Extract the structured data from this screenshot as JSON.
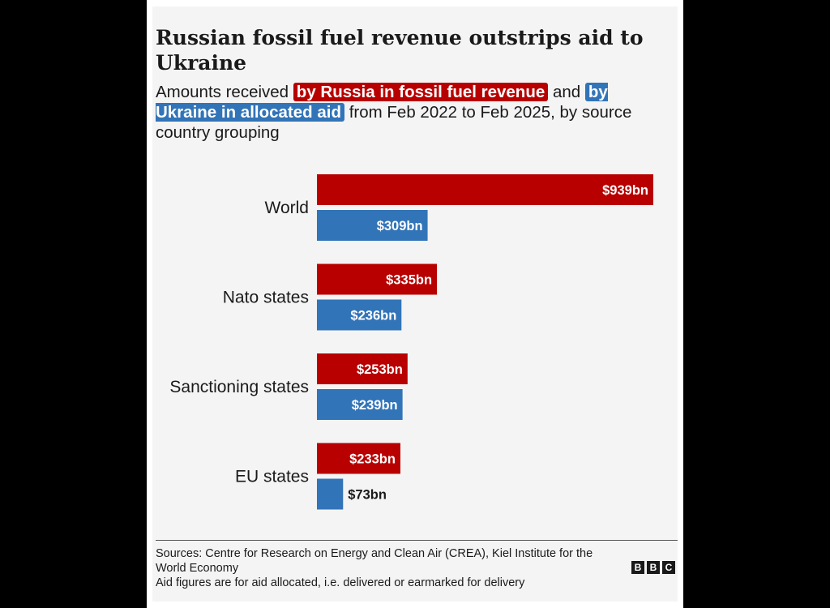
{
  "chart_data": {
    "type": "bar",
    "orientation": "horizontal",
    "title": "Russian fossil fuel revenue outstrips aid to Ukraine",
    "subtitle": {
      "pre": "Amounts received",
      "russia_label": "by Russia in fossil fuel revenue",
      "mid": "and",
      "ukraine_label": "by Ukraine in allocated aid",
      "post": "from Feb 2022 to Feb 2025, by source country grouping"
    },
    "categories": [
      "World",
      "Nato states",
      "Sanctioning states",
      "EU states"
    ],
    "series": [
      {
        "name": "by Russia in fossil fuel revenue",
        "color": "#b80000",
        "values": [
          939,
          335,
          253,
          233
        ],
        "labels": [
          "$939bn",
          "$335bn",
          "$253bn",
          "$233bn"
        ]
      },
      {
        "name": "by Ukraine in allocated aid",
        "color": "#3274b8",
        "values": [
          309,
          236,
          239,
          73
        ],
        "labels": [
          "$309bn",
          "$236bn",
          "$239bn",
          "$73bn"
        ]
      }
    ],
    "unit": "$bn",
    "xlim": [
      0,
      939
    ]
  },
  "footer": {
    "sources": "Sources: Centre for Research on Energy and Clean Air (CREA), Kiel Institute for the World Economy",
    "note": "Aid figures are for aid allocated, i.e. delivered or earmarked for delivery",
    "logo": [
      "B",
      "B",
      "C"
    ]
  }
}
